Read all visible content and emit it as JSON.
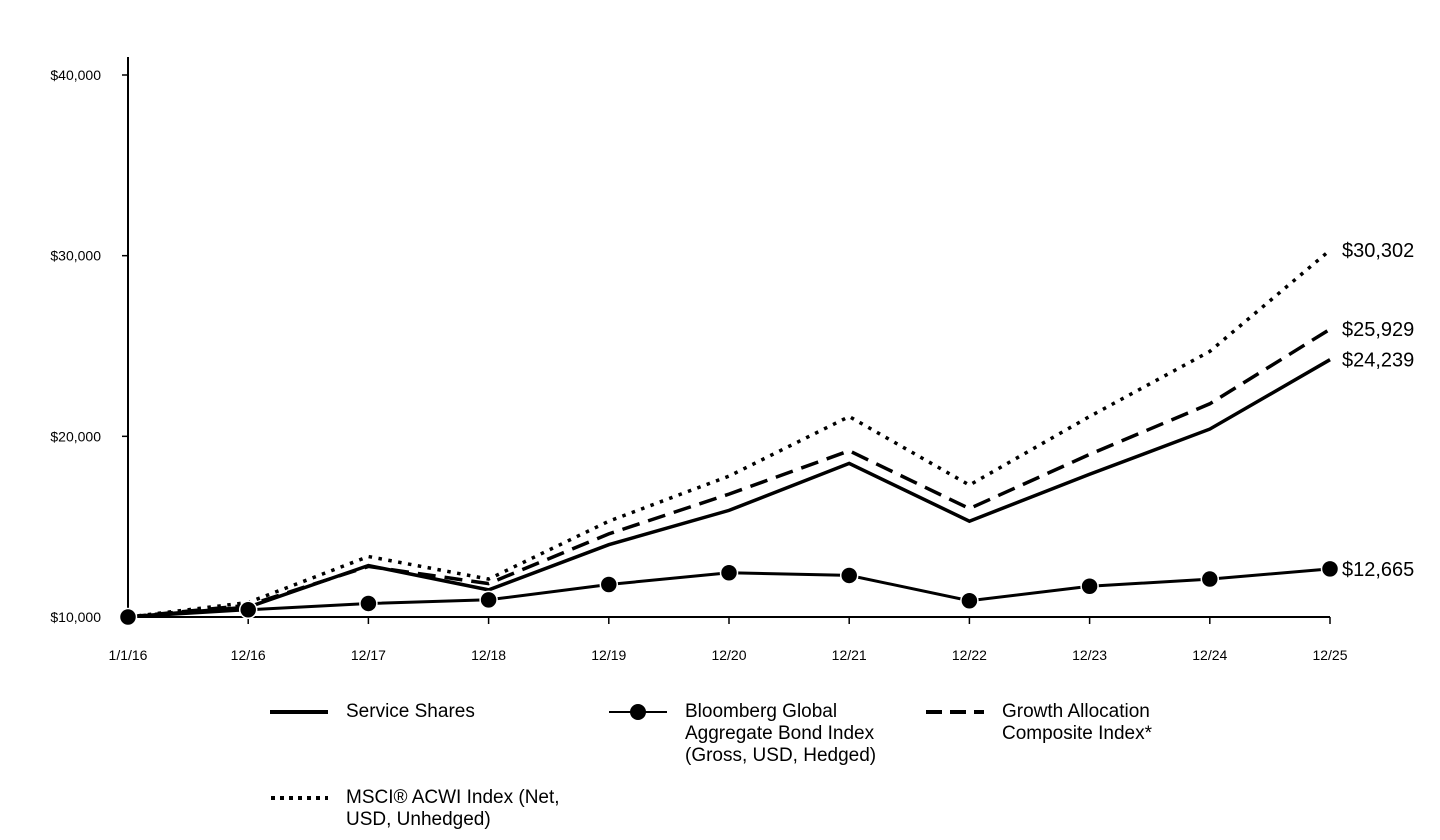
{
  "chart_data": {
    "type": "line",
    "x": [
      "1/1/16",
      "12/16",
      "12/17",
      "12/18",
      "12/19",
      "12/20",
      "12/21",
      "12/22",
      "12/23",
      "12/24",
      "12/25"
    ],
    "ylim": [
      10000,
      40000
    ],
    "yticks": [
      10000,
      20000,
      30000,
      40000
    ],
    "ytick_labels": [
      "$10,000",
      "$20,000",
      "$30,000",
      "$40,000"
    ],
    "grid": false,
    "legend_position": "bottom",
    "series": [
      {
        "name": "Service Shares",
        "style": "solid",
        "values": [
          10000,
          10550,
          12850,
          11500,
          14000,
          15900,
          18500,
          15300,
          17900,
          20400,
          24239
        ],
        "end_label": "$24,239"
      },
      {
        "name": "Bloomberg Global Aggregate Bond Index (Gross, USD, Hedged)",
        "style": "marker",
        "values": [
          10000,
          10400,
          10750,
          10950,
          11800,
          12450,
          12300,
          10900,
          11700,
          12100,
          12665
        ],
        "end_label": "$12,665"
      },
      {
        "name": "Growth Allocation Composite Index*",
        "style": "dashed",
        "values": [
          10000,
          10650,
          12800,
          11850,
          14600,
          16800,
          19200,
          16000,
          19000,
          21800,
          25929
        ],
        "end_label": "$25,929"
      },
      {
        "name": "MSCI® ACWI Index (Net, USD, Unhedged)",
        "style": "dotted",
        "values": [
          10000,
          10800,
          13350,
          12100,
          15300,
          17800,
          21100,
          17300,
          21100,
          24700,
          30302
        ],
        "end_label": "$30,302"
      }
    ]
  },
  "legend": [
    {
      "label": "Service Shares",
      "style": "solid"
    },
    {
      "label": "Bloomberg Global\nAggregate Bond Index\n(Gross, USD, Hedged)",
      "style": "marker"
    },
    {
      "label": "Growth Allocation\nComposite Index*",
      "style": "dashed"
    },
    {
      "label": "MSCI® ACWI Index (Net,\nUSD, Unhedged)",
      "style": "dotted"
    }
  ]
}
